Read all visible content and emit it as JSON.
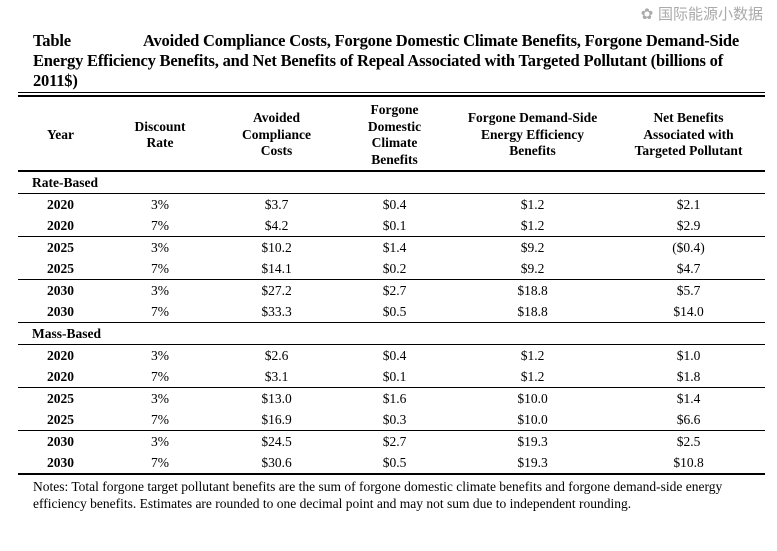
{
  "title": {
    "label": "Table",
    "text": "Avoided Compliance Costs, Forgone Domestic Climate Benefits, Forgone Demand-Side Energy Efficiency Benefits, and Net Benefits of Repeal Associated with Targeted Pollutant (billions of 2011$)"
  },
  "headers": [
    "Year",
    "Discount Rate",
    "Avoided Compliance Costs",
    "Forgone Domestic Climate Benefits",
    "Forgone Demand-Side Energy Efficiency Benefits",
    "Net Benefits Associated with Targeted Pollutant"
  ],
  "sections": [
    {
      "name": "Rate-Based",
      "rows": [
        [
          "2020",
          "3%",
          "$3.7",
          "$0.4",
          "$1.2",
          "$2.1"
        ],
        [
          "2020",
          "7%",
          "$4.2",
          "$0.1",
          "$1.2",
          "$2.9"
        ],
        [
          "2025",
          "3%",
          "$10.2",
          "$1.4",
          "$9.2",
          "($0.4)"
        ],
        [
          "2025",
          "7%",
          "$14.1",
          "$0.2",
          "$9.2",
          "$4.7"
        ],
        [
          "2030",
          "3%",
          "$27.2",
          "$2.7",
          "$18.8",
          "$5.7"
        ],
        [
          "2030",
          "7%",
          "$33.3",
          "$0.5",
          "$18.8",
          "$14.0"
        ]
      ]
    },
    {
      "name": "Mass-Based",
      "rows": [
        [
          "2020",
          "3%",
          "$2.6",
          "$0.4",
          "$1.2",
          "$1.0"
        ],
        [
          "2020",
          "7%",
          "$3.1",
          "$0.1",
          "$1.2",
          "$1.8"
        ],
        [
          "2025",
          "3%",
          "$13.0",
          "$1.6",
          "$10.0",
          "$1.4"
        ],
        [
          "2025",
          "7%",
          "$16.9",
          "$0.3",
          "$10.0",
          "$6.6"
        ],
        [
          "2030",
          "3%",
          "$24.5",
          "$2.7",
          "$19.3",
          "$2.5"
        ],
        [
          "2030",
          "7%",
          "$30.6",
          "$0.5",
          "$19.3",
          "$10.8"
        ]
      ]
    }
  ],
  "notes": "Notes: Total forgone target pollutant benefits are the sum of forgone domestic climate benefits and forgone demand-side energy efficiency benefits. Estimates are rounded to one decimal point and may not sum due to independent rounding.",
  "watermark": "国际能源小数据"
}
